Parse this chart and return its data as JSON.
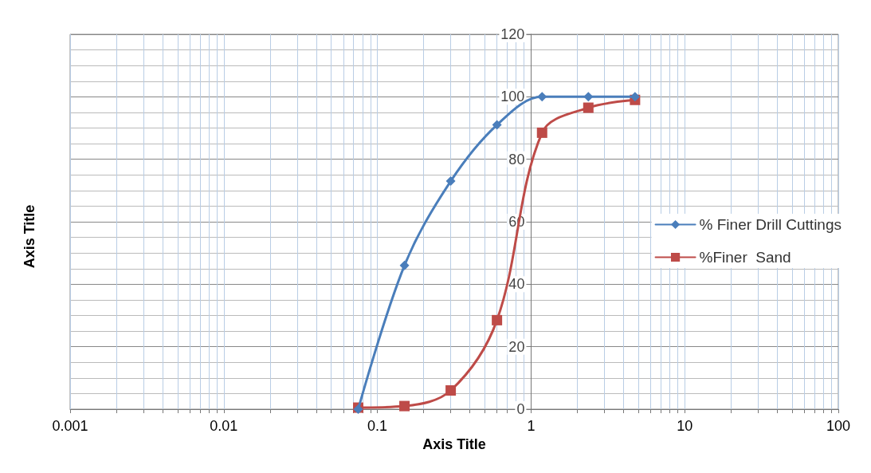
{
  "chart_data": {
    "type": "line",
    "xlabel": "Axis Title",
    "ylabel": "Axis Title",
    "log": "x",
    "grid": true,
    "legend": "right",
    "line_style": "solid",
    "xlim": [
      0.001,
      100
    ],
    "ylim": [
      0,
      120
    ],
    "xticks": [
      0.001,
      {
        "value": 0.002,
        "label": null
      },
      {
        "value": 0.003,
        "label": null
      },
      {
        "value": 0.004,
        "label": null
      },
      {
        "value": 0.005,
        "label": null
      },
      {
        "value": 0.006,
        "label": null
      },
      {
        "value": 0.007,
        "label": null
      },
      {
        "value": 0.008,
        "label": null
      },
      {
        "value": 0.009,
        "label": null
      },
      0.01,
      {
        "value": 0.02,
        "label": null
      },
      {
        "value": 0.03,
        "label": null
      },
      {
        "value": 0.04,
        "label": null
      },
      {
        "value": 0.05,
        "label": null
      },
      {
        "value": 0.06,
        "label": null
      },
      {
        "value": 0.07,
        "label": null
      },
      {
        "value": 0.08,
        "label": null
      },
      {
        "value": 0.09,
        "label": null
      },
      0.1,
      {
        "value": 0.2,
        "label": null
      },
      {
        "value": 0.3,
        "label": null
      },
      {
        "value": 0.4,
        "label": null
      },
      {
        "value": 0.5,
        "label": null
      },
      {
        "value": 0.6,
        "label": null
      },
      {
        "value": 0.7,
        "label": null
      },
      {
        "value": 0.8,
        "label": null
      },
      {
        "value": 0.9,
        "label": null
      },
      1,
      {
        "value": 2,
        "label": null
      },
      {
        "value": 3,
        "label": null
      },
      {
        "value": 4,
        "label": null
      },
      {
        "value": 5,
        "label": null
      },
      {
        "value": 6,
        "label": null
      },
      {
        "value": 7,
        "label": null
      },
      {
        "value": 8,
        "label": null
      },
      {
        "value": 9,
        "label": null
      },
      10,
      {
        "value": 20,
        "label": null
      },
      {
        "value": 30,
        "label": null
      },
      {
        "value": 40,
        "label": null
      },
      {
        "value": 50,
        "label": null
      },
      {
        "value": 60,
        "label": null
      },
      {
        "value": 70,
        "label": null
      },
      {
        "value": 80,
        "label": null
      },
      {
        "value": 90,
        "label": null
      },
      100
    ],
    "yticks": [
      0,
      20,
      40,
      60,
      80,
      100,
      120
    ],
    "x": [
      0.075,
      0.15,
      0.3,
      0.6,
      1.18,
      2.36,
      4.75
    ],
    "series": [
      {
        "name": "% Finer Drill Cuttings",
        "color": "#4a7ebb",
        "marker": "diamond",
        "values": [
          0,
          46,
          73,
          91,
          100,
          100,
          100
        ]
      },
      {
        "name": "%Finer  Sand",
        "color": "#be4b48",
        "marker": "square",
        "values": [
          0.5,
          1,
          6,
          28.5,
          88.5,
          96.5,
          99
        ]
      }
    ]
  }
}
